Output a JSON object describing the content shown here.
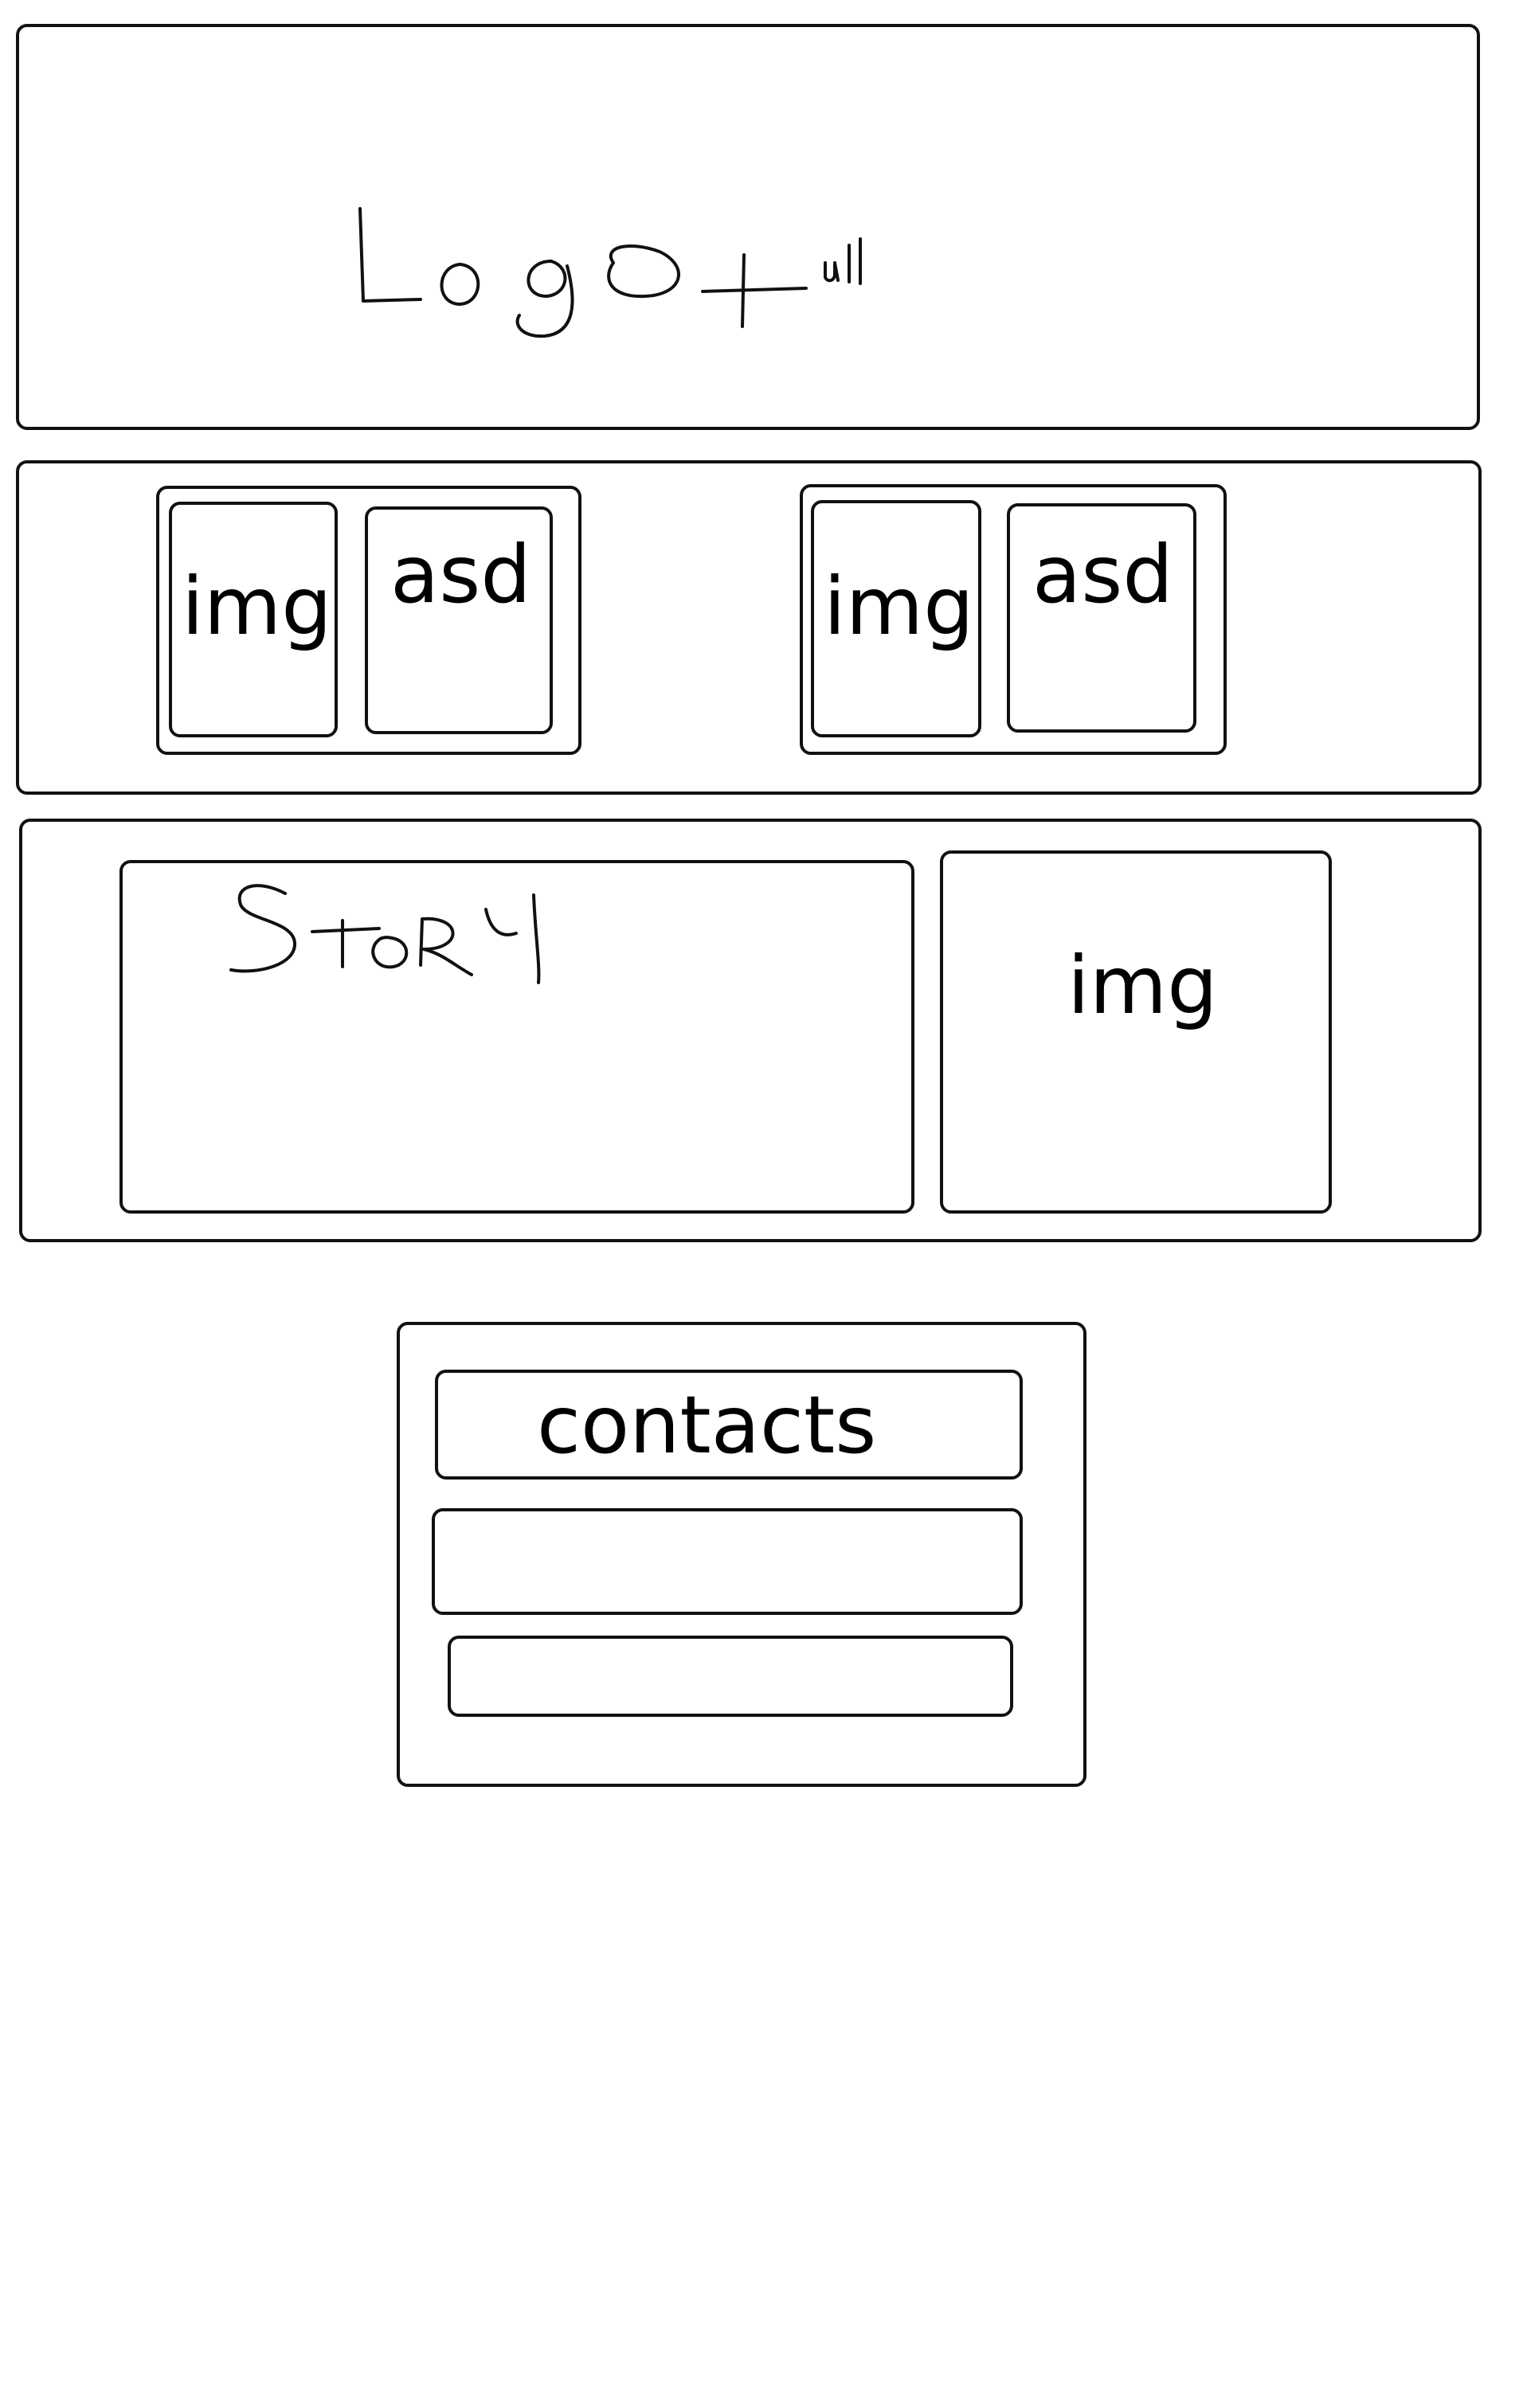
{
  "header": {
    "handwritten_text": "Logo + ul"
  },
  "features": {
    "cards": [
      {
        "image_label": "img",
        "text_label": "asd"
      },
      {
        "image_label": "img",
        "text_label": "asd"
      }
    ]
  },
  "story_section": {
    "handwritten_title": "Story",
    "image_label": "img"
  },
  "contacts": {
    "title": "contacts"
  },
  "colors": {
    "stroke": "#111111",
    "background": "#ffffff"
  }
}
